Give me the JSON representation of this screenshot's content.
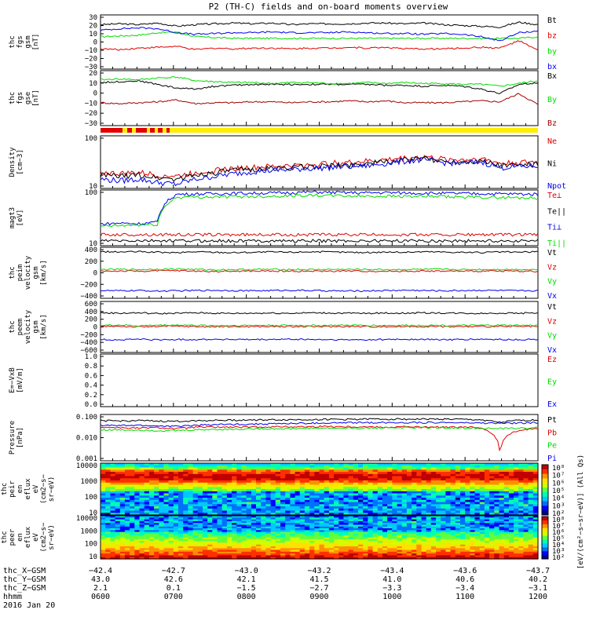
{
  "title": "P2 (TH-C) fields and on-board moments overview",
  "colors": {
    "black": "#000000",
    "red": "#e00000",
    "green": "#00dd00",
    "blue": "#0000ee",
    "darkred": "#a00000",
    "yellow": "#ffee00"
  },
  "chart_data": [
    {
      "type": "line",
      "ylabel": [
        "thc",
        "fgs",
        "gsm",
        "[nT]"
      ],
      "yticks": [
        "30",
        "20",
        "10",
        "0",
        "−10",
        "−20",
        "−30"
      ],
      "series": [
        {
          "name": "Bt",
          "color": "black",
          "values": [
            20,
            21,
            20,
            22,
            18,
            20,
            21,
            22,
            21,
            22,
            20,
            21,
            21,
            21,
            22,
            22,
            21,
            22,
            20,
            19,
            18,
            17,
            23,
            20
          ]
        },
        {
          "name": "bz",
          "color": "red",
          "values": [
            -10,
            -11,
            -9,
            -8,
            -7,
            -11,
            -9,
            -10,
            -9,
            -9,
            -10,
            -9,
            -9,
            -8,
            -9,
            -8,
            -10,
            -10,
            -10,
            -9,
            -8,
            -9,
            0,
            -12
          ]
        },
        {
          "name": "by",
          "color": "green",
          "values": [
            5,
            6,
            7,
            10,
            11,
            5,
            4,
            3,
            3,
            3,
            3,
            3,
            3,
            3,
            3,
            3,
            3,
            3,
            3,
            3,
            3,
            3,
            3,
            5
          ]
        },
        {
          "name": "bx",
          "color": "blue",
          "values": [
            13,
            15,
            16,
            15,
            10,
            8,
            9,
            10,
            10,
            11,
            10,
            10,
            10,
            11,
            10,
            9,
            9,
            8,
            9,
            8,
            5,
            0,
            10,
            12
          ]
        }
      ]
    },
    {
      "type": "line",
      "ylabel": [
        "thc",
        "fgs",
        "gse",
        "[nT]"
      ],
      "yticks": [
        "20",
        "10",
        "0",
        "−10",
        "−20",
        "−30"
      ],
      "series": [
        {
          "name": "Bx",
          "color": "black",
          "values": [
            12,
            13,
            14,
            10,
            6,
            5,
            8,
            9,
            10,
            10,
            10,
            10,
            10,
            10,
            10,
            9,
            9,
            8,
            9,
            8,
            5,
            0,
            10,
            12
          ]
        },
        {
          "name": "By",
          "color": "green",
          "values": [
            15,
            16,
            15,
            17,
            18,
            14,
            13,
            12,
            12,
            11,
            12,
            12,
            11,
            11,
            12,
            11,
            12,
            11,
            11,
            10,
            10,
            8,
            11,
            14
          ]
        },
        {
          "name": "Bz",
          "color": "darkred",
          "values": [
            -10,
            -11,
            -10,
            -9,
            -7,
            -11,
            -10,
            -10,
            -9,
            -9,
            -10,
            -9,
            -9,
            -8,
            -9,
            -8,
            -10,
            -10,
            -10,
            -9,
            -8,
            -9,
            0,
            -12
          ]
        }
      ]
    },
    {
      "type": "line",
      "ylabel": [
        "Density",
        "[cm−3]"
      ],
      "yticks": [
        "100",
        "10"
      ],
      "log": true,
      "series": [
        {
          "name": "Ne",
          "color": "red",
          "values": [
            20,
            19,
            20,
            18,
            17,
            20,
            22,
            24,
            25,
            26,
            27,
            28,
            30,
            31,
            33,
            35,
            38,
            40,
            36,
            35,
            37,
            30,
            31,
            32
          ]
        },
        {
          "name": "Ni",
          "color": "black",
          "values": [
            18,
            17,
            18,
            16,
            15,
            18,
            20,
            22,
            23,
            24,
            25,
            26,
            27,
            28,
            30,
            32,
            35,
            37,
            33,
            32,
            34,
            27,
            28,
            29
          ]
        },
        {
          "name": "Npot",
          "color": "blue",
          "values": [
            15,
            14,
            15,
            13,
            12,
            15,
            17,
            19,
            21,
            22,
            23,
            24,
            25,
            26,
            27,
            30,
            33,
            35,
            31,
            30,
            32,
            25,
            26,
            27
          ]
        }
      ]
    },
    {
      "type": "line",
      "ylabel": [
        "magt3",
        "[eV]"
      ],
      "yticks": [
        "100",
        "10"
      ],
      "log": true,
      "series": [
        {
          "name": "Te⊥",
          "color": "red",
          "values": [
            25,
            25,
            25,
            25,
            25,
            25,
            25,
            25,
            25,
            25,
            25,
            25,
            25,
            25,
            25,
            25,
            25,
            25,
            25,
            25,
            25,
            25,
            25,
            25
          ]
        },
        {
          "name": "Te||",
          "color": "black",
          "values": [
            15,
            15,
            15,
            15,
            15,
            15,
            15,
            15,
            15,
            15,
            15,
            15,
            15,
            15,
            15,
            15,
            15,
            15,
            15,
            15,
            15,
            15,
            15,
            15
          ]
        },
        {
          "name": "Ti⊥",
          "color": "blue",
          "values": [
            60,
            65,
            62,
            70,
            700,
            720,
            740,
            760,
            770,
            780,
            800,
            850,
            820,
            800,
            790,
            810,
            780,
            770,
            760,
            750,
            740,
            730,
            720,
            700
          ]
        },
        {
          "name": "Ti||",
          "color": "green",
          "values": [
            50,
            52,
            55,
            58,
            550,
            560,
            570,
            580,
            590,
            600,
            620,
            650,
            630,
            610,
            600,
            610,
            590,
            580,
            570,
            560,
            550,
            540,
            530,
            520
          ]
        }
      ]
    },
    {
      "type": "line",
      "ylabel": [
        "thc",
        "peim",
        "velocity",
        "gsm",
        "[km/s]"
      ],
      "yticks": [
        "400",
        "200",
        "0",
        "−200",
        "−400"
      ],
      "series": [
        {
          "name": "Vt",
          "color": "black",
          "values": [
            360,
            355,
            360,
            350,
            340,
            360,
            350,
            345,
            350,
            355,
            350,
            360,
            355,
            350,
            345,
            355,
            350,
            360,
            355,
            350,
            345,
            355,
            350,
            360
          ]
        },
        {
          "name": "Vz",
          "color": "red",
          "values": [
            10,
            12,
            8,
            15,
            20,
            10,
            5,
            8,
            10,
            12,
            10,
            8,
            10,
            12,
            10,
            8,
            10,
            12,
            10,
            8,
            10,
            12,
            10,
            8
          ]
        },
        {
          "name": "Vy",
          "color": "green",
          "values": [
            40,
            42,
            38,
            45,
            50,
            40,
            35,
            38,
            40,
            42,
            40,
            38,
            40,
            42,
            40,
            38,
            40,
            42,
            40,
            38,
            40,
            42,
            40,
            38
          ]
        },
        {
          "name": "Vx",
          "color": "blue",
          "values": [
            -340,
            -345,
            -340,
            -350,
            -345,
            -340,
            -335,
            -340,
            -345,
            -340,
            -335,
            -340,
            -345,
            -350,
            -345,
            -340,
            -335,
            -340,
            -345,
            -340,
            -335,
            -340,
            -345,
            -340
          ]
        }
      ]
    },
    {
      "type": "line",
      "ylabel": [
        "thc",
        "peem",
        "velocity",
        "gsm",
        "[km/s]"
      ],
      "yticks": [
        "600",
        "400",
        "200",
        "0",
        "−200",
        "−400",
        "−600"
      ],
      "series": [
        {
          "name": "Vt",
          "color": "black",
          "values": [
            360,
            350,
            360,
            340,
            350,
            360,
            350,
            345,
            350,
            355,
            350,
            360,
            355,
            350,
            345,
            355,
            350,
            360,
            355,
            350,
            345,
            355,
            350,
            360
          ]
        },
        {
          "name": "Vz",
          "color": "red",
          "values": [
            10,
            20,
            0,
            15,
            20,
            10,
            5,
            8,
            10,
            12,
            10,
            8,
            10,
            12,
            10,
            8,
            10,
            12,
            10,
            8,
            10,
            12,
            10,
            8
          ]
        },
        {
          "name": "Vy",
          "color": "green",
          "values": [
            40,
            50,
            30,
            45,
            50,
            40,
            35,
            38,
            40,
            42,
            40,
            38,
            40,
            42,
            40,
            38,
            40,
            42,
            40,
            38,
            40,
            42,
            40,
            38
          ]
        },
        {
          "name": "Vx",
          "color": "blue",
          "values": [
            -320,
            -330,
            -310,
            -330,
            -320,
            -320,
            -315,
            -320,
            -325,
            -320,
            -315,
            -320,
            -325,
            -330,
            -325,
            -320,
            -315,
            -320,
            -325,
            -320,
            -315,
            -320,
            -325,
            -320
          ]
        }
      ]
    },
    {
      "type": "line",
      "ylabel": [
        "E=−VxB",
        "[mV/m]"
      ],
      "yticks": [
        "1.0",
        "0.8",
        "0.6",
        "0.4",
        "0.2",
        "0.0"
      ],
      "series": [
        {
          "name": "Ez",
          "color": "red",
          "values": []
        },
        {
          "name": "Ey",
          "color": "green",
          "values": []
        },
        {
          "name": "Ex",
          "color": "blue",
          "values": []
        }
      ]
    },
    {
      "type": "line",
      "ylabel": [
        "Pressure",
        "[nPa]"
      ],
      "yticks": [
        "0.100",
        "0.010",
        "0.001"
      ],
      "log": true,
      "series": [
        {
          "name": "Pt",
          "color": "black",
          "values": [
            0.4,
            0.38,
            0.4,
            0.37,
            0.36,
            0.4,
            0.42,
            0.43,
            0.44,
            0.45,
            0.46,
            0.47,
            0.48,
            0.49,
            0.5,
            0.5,
            0.5,
            0.5,
            0.5,
            0.48,
            0.45,
            0.3,
            0.42,
            0.44
          ]
        },
        {
          "name": "Pb",
          "color": "red",
          "values": [
            0.15,
            0.14,
            0.13,
            0.14,
            0.12,
            0.15,
            0.15,
            0.15,
            0.15,
            0.16,
            0.16,
            0.16,
            0.17,
            0.16,
            0.16,
            0.15,
            0.16,
            0.15,
            0.15,
            0.15,
            0.14,
            0.002,
            0.1,
            0.12
          ]
        },
        {
          "name": "Pe",
          "color": "green",
          "values": [
            0.1,
            0.1,
            0.1,
            0.09,
            0.09,
            0.1,
            0.11,
            0.11,
            0.12,
            0.12,
            0.12,
            0.13,
            0.13,
            0.13,
            0.13,
            0.14,
            0.14,
            0.14,
            0.14,
            0.13,
            0.13,
            0.12,
            0.13,
            0.14
          ]
        },
        {
          "name": "Pi",
          "color": "blue",
          "values": [
            0.2,
            0.19,
            0.2,
            0.18,
            0.17,
            0.2,
            0.22,
            0.23,
            0.24,
            0.25,
            0.26,
            0.27,
            0.28,
            0.29,
            0.3,
            0.3,
            0.3,
            0.3,
            0.3,
            0.29,
            0.28,
            0.27,
            0.28,
            0.29
          ]
        }
      ]
    },
    {
      "type": "heatmap",
      "ylabel": [
        "thc",
        "peir",
        "en",
        "eflux",
        "eV",
        "(cm2−s−",
        "sr−eV)"
      ],
      "yticks": [
        "10000",
        "1000",
        "100",
        "10"
      ]
    },
    {
      "type": "heatmap",
      "ylabel": [
        "thc",
        "peer",
        "en",
        "eflux",
        "eV",
        "(cm2−s−",
        "sr−eV)"
      ],
      "yticks": [
        "10000",
        "1000",
        "100",
        "10"
      ]
    }
  ],
  "colorbar": {
    "label": "[eV/(cm²−s−sr−eV)] (All Qs)",
    "upper_ticks": [
      "10⁸",
      "10⁷",
      "10⁶",
      "10⁵",
      "10⁴",
      "10³",
      "10²"
    ],
    "lower_ticks": [
      "10⁸",
      "10⁷",
      "10⁶",
      "10⁵",
      "10⁴",
      "10³",
      "10²"
    ]
  },
  "ephemeris": {
    "rows": [
      {
        "label": "thc_X−GSM",
        "values": [
          "−42.4",
          "−42.7",
          "−43.0",
          "−43.2",
          "−43.4",
          "−43.6",
          "−43.7"
        ]
      },
      {
        "label": "thc_Y−GSM",
        "values": [
          "43.0",
          "42.6",
          "42.1",
          "41.5",
          "41.0",
          "40.6",
          "40.2"
        ]
      },
      {
        "label": "thc_Z−GSM",
        "values": [
          "2.1",
          "0.1",
          "−1.5",
          "−2.7",
          "−3.3",
          "−3.4",
          "−3.1"
        ]
      },
      {
        "label": "hhmm",
        "values": [
          "0600",
          "0700",
          "0800",
          "0900",
          "1000",
          "1100",
          "1200"
        ]
      }
    ],
    "date": "2016 Jan 20"
  }
}
